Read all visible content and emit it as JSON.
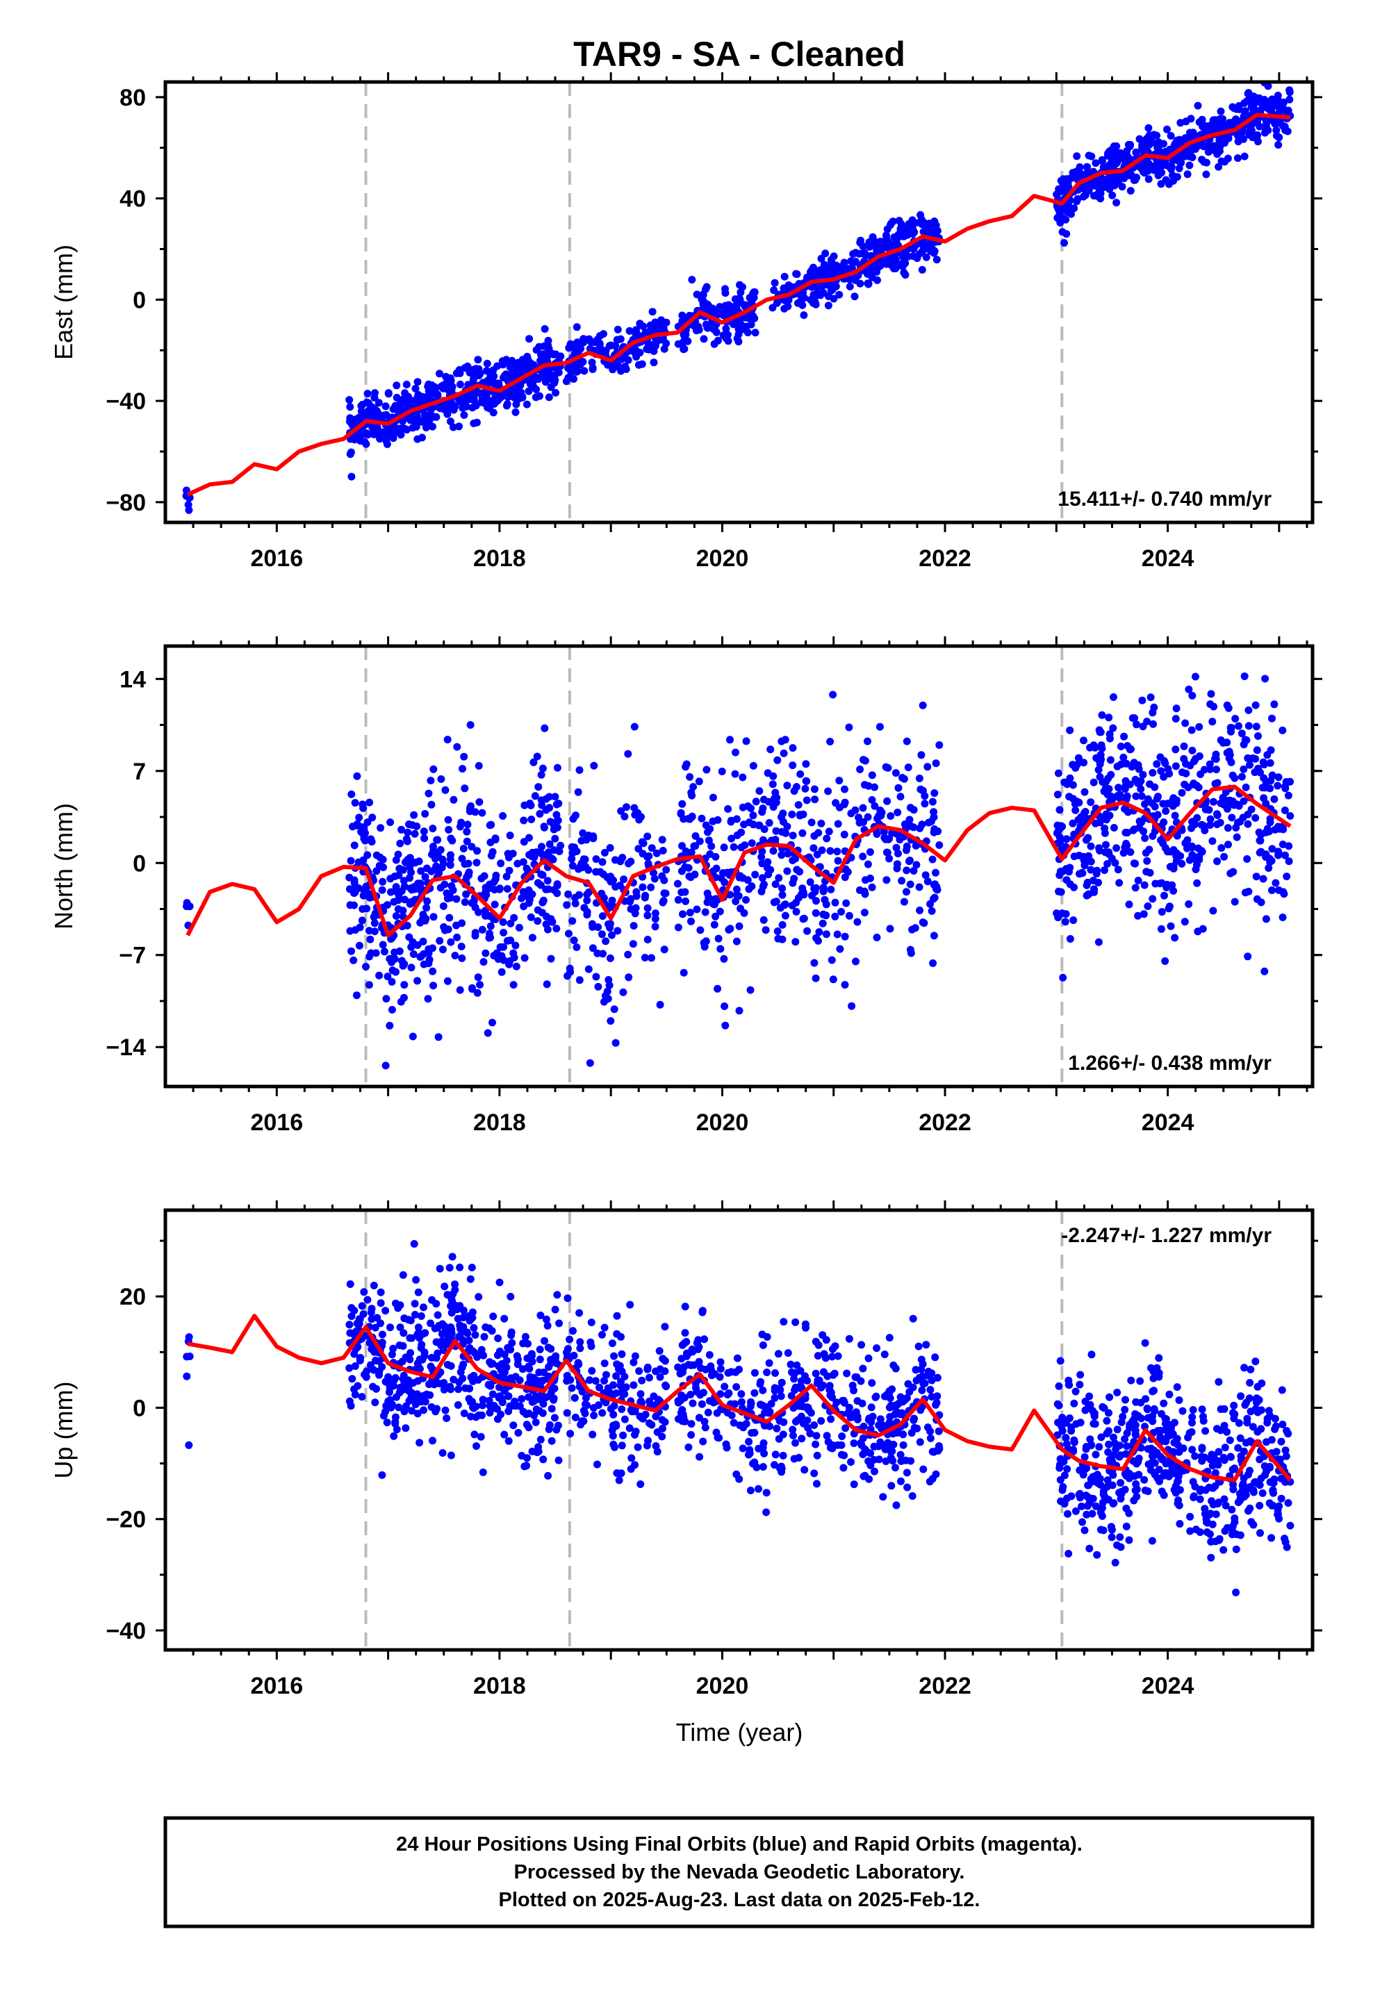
{
  "chart_data": {
    "type": "scatter",
    "title": "TAR9  - SA - Cleaned",
    "xlabel": "Time (year)",
    "xlim": [
      2015.0,
      2025.3
    ],
    "xticks": [
      "2016",
      "2018",
      "2020",
      "2022",
      "2024"
    ],
    "xtick_values": [
      2016,
      2018,
      2020,
      2022,
      2024
    ],
    "vertical_dashed_lines": [
      2016.8,
      2018.63,
      2023.05
    ],
    "colors": {
      "points": "#0000ff",
      "model": "#ff0000",
      "dashed": "#bbbbbb"
    },
    "panels": [
      {
        "name": "east",
        "ylabel": "East (mm)",
        "ylim": [
          -88,
          86
        ],
        "yticks": [
          "80",
          "40",
          "0",
          "−40",
          "−80"
        ],
        "ytick_values": [
          80,
          40,
          0,
          -40,
          -80
        ],
        "rate_label": "15.411+/- 0.740 mm/yr",
        "rate_position": "bottom-right",
        "model_line": {
          "x": [
            2015.2,
            2015.4,
            2015.6,
            2015.8,
            2016.0,
            2016.2,
            2016.4,
            2016.6,
            2016.8,
            2017.0,
            2017.2,
            2017.4,
            2017.6,
            2017.8,
            2018.0,
            2018.2,
            2018.4,
            2018.6,
            2018.8,
            2019.0,
            2019.2,
            2019.4,
            2019.6,
            2019.8,
            2020.0,
            2020.2,
            2020.4,
            2020.6,
            2020.8,
            2021.0,
            2021.2,
            2021.4,
            2021.6,
            2021.8,
            2022.0,
            2022.2,
            2022.4,
            2022.6,
            2022.8,
            2023.05,
            2023.2,
            2023.4,
            2023.6,
            2023.8,
            2024.0,
            2024.2,
            2024.4,
            2024.6,
            2024.8,
            2025.1
          ],
          "y": [
            -77,
            -73,
            -72,
            -65,
            -67,
            -60,
            -57,
            -55,
            -48,
            -49,
            -44,
            -41,
            -38,
            -34,
            -36,
            -31,
            -26,
            -25,
            -21,
            -24,
            -17,
            -14,
            -13,
            -5,
            -9,
            -5,
            0,
            2,
            7,
            8,
            11,
            17,
            20,
            25,
            23,
            28,
            31,
            33,
            41,
            38,
            46,
            50,
            51,
            57,
            56,
            62,
            65,
            67,
            73,
            72
          ]
        },
        "scatter_segments": [
          {
            "x_start": 2015.18,
            "x_end": 2015.22,
            "spread": 4,
            "count": 6
          },
          {
            "x_start": 2016.65,
            "x_end": 2018.55,
            "spread": 5,
            "count": 520
          },
          {
            "x_start": 2018.6,
            "x_end": 2019.5,
            "spread": 4,
            "count": 170
          },
          {
            "x_start": 2019.6,
            "x_end": 2020.3,
            "spread": 5,
            "count": 160
          },
          {
            "x_start": 2020.45,
            "x_end": 2020.85,
            "spread": 4,
            "count": 60
          },
          {
            "x_start": 2020.8,
            "x_end": 2021.95,
            "spread": 5,
            "count": 280
          },
          {
            "x_start": 2023.0,
            "x_end": 2025.1,
            "spread": 5,
            "count": 560
          }
        ]
      },
      {
        "name": "north",
        "ylabel": "North (mm)",
        "ylim": [
          -17,
          16.5
        ],
        "yticks": [
          "14",
          "7",
          "0",
          "−7",
          "−14"
        ],
        "ytick_values": [
          14,
          7,
          0,
          -7,
          -14
        ],
        "rate_label": "1.266+/- 0.438 mm/yr",
        "rate_position": "bottom-right",
        "model_line": {
          "x": [
            2015.2,
            2015.4,
            2015.6,
            2015.8,
            2016.0,
            2016.2,
            2016.4,
            2016.6,
            2016.8,
            2017.0,
            2017.2,
            2017.4,
            2017.6,
            2017.8,
            2018.0,
            2018.2,
            2018.4,
            2018.6,
            2018.8,
            2019.0,
            2019.2,
            2019.4,
            2019.6,
            2019.8,
            2020.0,
            2020.2,
            2020.4,
            2020.6,
            2020.8,
            2021.0,
            2021.2,
            2021.4,
            2021.6,
            2021.8,
            2022.0,
            2022.2,
            2022.4,
            2022.6,
            2022.8,
            2023.05,
            2023.2,
            2023.4,
            2023.6,
            2023.8,
            2024.0,
            2024.2,
            2024.4,
            2024.6,
            2024.8,
            2025.1
          ],
          "y": [
            -5.5,
            -2.2,
            -1.6,
            -2.0,
            -4.5,
            -3.5,
            -1.0,
            -0.3,
            -0.4,
            -5.5,
            -4.0,
            -1.3,
            -1.0,
            -2.5,
            -4.2,
            -1.5,
            0.2,
            -1.0,
            -1.5,
            -4.2,
            -1.0,
            -0.3,
            0.3,
            0.5,
            -2.8,
            0.8,
            1.4,
            1.3,
            -0.2,
            -1.5,
            1.8,
            2.8,
            2.5,
            1.5,
            0.2,
            2.5,
            3.8,
            4.2,
            4.0,
            0.3,
            2.0,
            4.2,
            4.6,
            3.8,
            1.8,
            3.8,
            5.6,
            5.8,
            4.5,
            2.8
          ]
        },
        "scatter_segments": [
          {
            "x_start": 2015.18,
            "x_end": 2015.22,
            "spread": 3,
            "count": 4
          },
          {
            "x_start": 2016.65,
            "x_end": 2018.55,
            "spread": 4,
            "count": 520
          },
          {
            "x_start": 2018.6,
            "x_end": 2019.5,
            "spread": 4,
            "count": 170
          },
          {
            "x_start": 2019.6,
            "x_end": 2021.95,
            "spread": 4,
            "count": 480
          },
          {
            "x_start": 2023.0,
            "x_end": 2025.1,
            "spread": 4,
            "count": 560
          }
        ]
      },
      {
        "name": "up",
        "ylabel": "Up (mm)",
        "ylim": [
          -43.5,
          35.5
        ],
        "yticks": [
          "20",
          "0",
          "−20",
          "−40"
        ],
        "ytick_values": [
          20,
          0,
          -20,
          -40
        ],
        "rate_label": "-2.247+/- 1.227 mm/yr",
        "rate_position": "top-right",
        "model_line": {
          "x": [
            2015.2,
            2015.4,
            2015.6,
            2015.8,
            2016.0,
            2016.2,
            2016.4,
            2016.6,
            2016.8,
            2017.0,
            2017.2,
            2017.4,
            2017.6,
            2017.8,
            2018.0,
            2018.2,
            2018.4,
            2018.6,
            2018.8,
            2019.0,
            2019.2,
            2019.4,
            2019.6,
            2019.8,
            2020.0,
            2020.2,
            2020.4,
            2020.6,
            2020.8,
            2021.0,
            2021.2,
            2021.4,
            2021.6,
            2021.8,
            2022.0,
            2022.2,
            2022.4,
            2022.6,
            2022.8,
            2023.05,
            2023.2,
            2023.4,
            2023.6,
            2023.8,
            2024.0,
            2024.2,
            2024.4,
            2024.6,
            2024.8,
            2025.1
          ],
          "y": [
            11.5,
            10.8,
            10.0,
            16.5,
            11.0,
            9.0,
            8.0,
            9.0,
            14.5,
            8.0,
            6.5,
            5.5,
            12.0,
            7.0,
            4.5,
            3.8,
            3.0,
            8.5,
            3.0,
            1.5,
            0.5,
            -0.5,
            3.0,
            6.0,
            0.5,
            -1.0,
            -2.5,
            0.5,
            4.0,
            -0.5,
            -4.0,
            -5.0,
            -3.0,
            1.5,
            -4.0,
            -6.0,
            -7.0,
            -7.5,
            -0.5,
            -7.5,
            -9.5,
            -10.5,
            -11.0,
            -4.0,
            -8.5,
            -11.0,
            -12.5,
            -13.0,
            -6.0,
            -13.0
          ]
        },
        "scatter_segments": [
          {
            "x_start": 2015.18,
            "x_end": 2015.22,
            "spread": 12,
            "count": 6
          },
          {
            "x_start": 2016.65,
            "x_end": 2018.55,
            "spread": 7,
            "count": 520
          },
          {
            "x_start": 2018.6,
            "x_end": 2019.5,
            "spread": 6,
            "count": 170
          },
          {
            "x_start": 2019.6,
            "x_end": 2021.95,
            "spread": 6,
            "count": 480
          },
          {
            "x_start": 2023.0,
            "x_end": 2025.1,
            "spread": 7,
            "count": 560
          }
        ]
      }
    ],
    "footer_caption": [
      "24 Hour Positions Using Final Orbits (blue) and Rapid Orbits (magenta).",
      "Processed by the Nevada Geodetic Laboratory.",
      "Plotted on 2025-Aug-23. Last data on 2025-Feb-12."
    ]
  }
}
